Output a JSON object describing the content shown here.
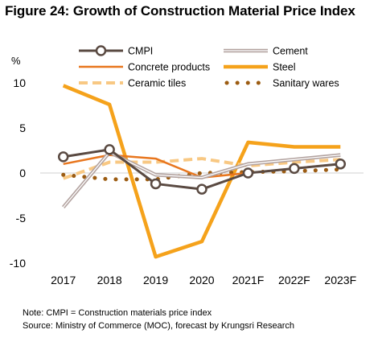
{
  "header": {
    "title": "Figure 24: Growth of Construction Material Price Index",
    "unit": "%"
  },
  "notes": {
    "note": "Note: CMPI = Construction materials price index",
    "source": "Source: Ministry of Commerce (MOC), forecast by Krungsri Research"
  },
  "chart_data": {
    "type": "line",
    "title": "Figure 24: Growth of Construction Material Price Index",
    "ylabel": "%",
    "xlabel": "",
    "categories": [
      "2017",
      "2018",
      "2019",
      "2020",
      "2021F",
      "2022F",
      "2023F"
    ],
    "ylim": [
      -10,
      10
    ],
    "yticks": [
      -10,
      -5,
      0,
      5,
      10
    ],
    "grid": false,
    "legend_position": "top",
    "series": [
      {
        "name": "CMPI",
        "values": [
          1.8,
          2.6,
          -1.2,
          -1.8,
          0.0,
          0.5,
          1.0
        ],
        "color": "#5a4a42",
        "style": "marker-circle"
      },
      {
        "name": "Cement",
        "values": [
          -3.8,
          2.3,
          -0.2,
          -0.5,
          1.0,
          1.5,
          2.0
        ],
        "color": "#b3a3a0",
        "style": "double-line"
      },
      {
        "name": "Concrete products",
        "values": [
          1.0,
          2.0,
          1.6,
          -0.5,
          0.0,
          0.5,
          1.0
        ],
        "color": "#e8761e",
        "style": "solid"
      },
      {
        "name": "Steel",
        "values": [
          9.7,
          7.6,
          -9.3,
          -7.6,
          3.4,
          2.9,
          2.9
        ],
        "color": "#f5a21b",
        "style": "thick"
      },
      {
        "name": "Ceramic tiles",
        "values": [
          -0.6,
          1.2,
          1.2,
          1.6,
          0.8,
          1.2,
          1.5
        ],
        "color": "#f8c883",
        "style": "dashed"
      },
      {
        "name": "Sanitary wares",
        "values": [
          -0.2,
          -0.7,
          -0.7,
          0.0,
          0.1,
          0.2,
          0.4
        ],
        "color": "#9c5c12",
        "style": "dotted"
      }
    ]
  }
}
